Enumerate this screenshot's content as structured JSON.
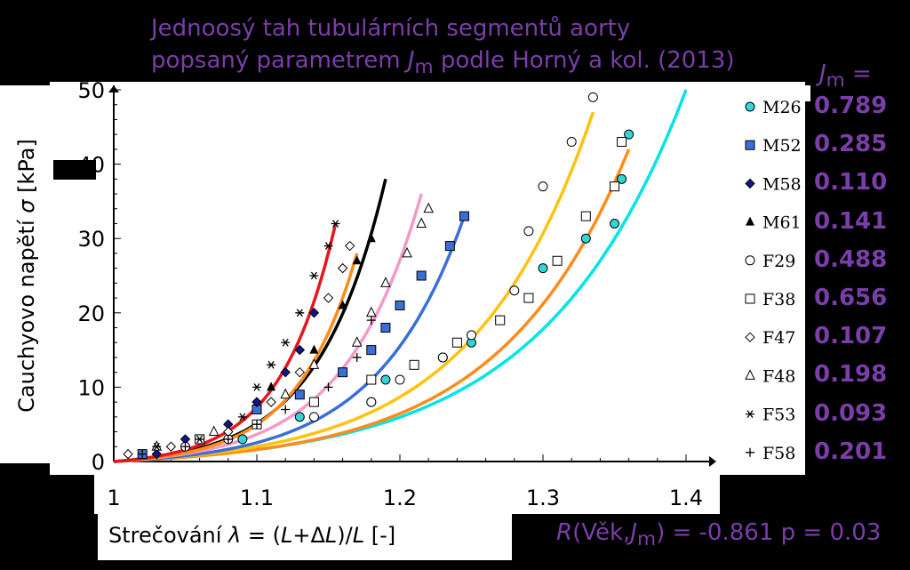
{
  "title_line1": "Jednoosý tah tubulárních segmentů aorty",
  "title_line2_pre": "popsaný parametrem ",
  "title_line2_var": "J",
  "title_line2_sub": "m",
  "title_line2_post": " podle Horný a kol. (2013)",
  "jm_header_var": "J",
  "jm_header_sub": "m",
  "jm_header_eq": " =",
  "stat_R": "R",
  "stat_pre": "(Věk,",
  "stat_var": "J",
  "stat_sub": "m",
  "stat_post": ") = -0.861 p = 0.03",
  "colors": {
    "background": "#000000",
    "accent": "#7a3ea8",
    "cyan": "#00e5e5",
    "blue": "#3a6fd8",
    "orange": "#ff8c1a",
    "yellow": "#ffc20e",
    "pink": "#f29ac8",
    "red": "#e8141e"
  },
  "chart_data": {
    "type": "scatter",
    "xlabel_pre": "Strečování ",
    "xlabel_sym": "λ",
    "xlabel_mid": " = (",
    "xlabel_L1": "L",
    "xlabel_plus": "+Δ",
    "xlabel_L2": "L",
    "xlabel_close": ")/",
    "xlabel_L3": "L",
    "xlabel_unit": " [-]",
    "ylabel_pre": "Cauchyovo napětí ",
    "ylabel_sym": "σ",
    "ylabel_unit": " [kPa]",
    "xlim": [
      1.0,
      1.4
    ],
    "ylim": [
      0,
      50
    ],
    "xticks": [
      "1",
      "1.1",
      "1.2",
      "1.3",
      "1.4"
    ],
    "yticks": [
      "0",
      "10",
      "20",
      "30",
      "40",
      "50"
    ],
    "legend_position": "right",
    "series": [
      {
        "name": "M26",
        "marker": "circle-filled-cyan",
        "jm": "0.789",
        "points": [
          [
            1.09,
            3
          ],
          [
            1.13,
            6
          ],
          [
            1.18,
            8
          ],
          [
            1.19,
            11
          ],
          [
            1.23,
            14
          ],
          [
            1.25,
            16
          ],
          [
            1.27,
            19
          ],
          [
            1.3,
            26
          ],
          [
            1.33,
            30
          ],
          [
            1.35,
            32
          ],
          [
            1.355,
            38
          ],
          [
            1.36,
            44
          ]
        ]
      },
      {
        "name": "M52",
        "marker": "square-filled-blue",
        "jm": "0.285",
        "points": [
          [
            1.02,
            1
          ],
          [
            1.06,
            3
          ],
          [
            1.1,
            7
          ],
          [
            1.13,
            9
          ],
          [
            1.16,
            12
          ],
          [
            1.18,
            15
          ],
          [
            1.19,
            18
          ],
          [
            1.2,
            21
          ],
          [
            1.215,
            25
          ],
          [
            1.235,
            29
          ],
          [
            1.245,
            33
          ]
        ]
      },
      {
        "name": "M58",
        "marker": "diamond-filled-navy",
        "jm": "0.110",
        "points": [
          [
            1.03,
            1
          ],
          [
            1.05,
            3
          ],
          [
            1.08,
            5
          ],
          [
            1.1,
            8
          ],
          [
            1.12,
            12
          ],
          [
            1.13,
            15
          ],
          [
            1.14,
            20
          ]
        ]
      },
      {
        "name": "M61",
        "marker": "triangle-filled-black",
        "jm": "0.141",
        "points": [
          [
            1.11,
            10
          ],
          [
            1.14,
            15
          ],
          [
            1.16,
            21
          ],
          [
            1.17,
            27
          ],
          [
            1.18,
            30
          ]
        ]
      },
      {
        "name": "F29",
        "marker": "circle-open",
        "jm": "0.488",
        "points": [
          [
            1.05,
            2
          ],
          [
            1.08,
            3
          ],
          [
            1.14,
            6
          ],
          [
            1.18,
            8
          ],
          [
            1.2,
            11
          ],
          [
            1.23,
            14
          ],
          [
            1.25,
            17
          ],
          [
            1.28,
            23
          ],
          [
            1.29,
            31
          ],
          [
            1.3,
            37
          ],
          [
            1.32,
            43
          ],
          [
            1.335,
            49
          ]
        ]
      },
      {
        "name": "F38",
        "marker": "square-open",
        "jm": "0.656",
        "points": [
          [
            1.06,
            3
          ],
          [
            1.1,
            5
          ],
          [
            1.14,
            8
          ],
          [
            1.18,
            11
          ],
          [
            1.21,
            13
          ],
          [
            1.24,
            16
          ],
          [
            1.27,
            19
          ],
          [
            1.29,
            22
          ],
          [
            1.31,
            27
          ],
          [
            1.33,
            33
          ],
          [
            1.35,
            37
          ],
          [
            1.355,
            43
          ]
        ]
      },
      {
        "name": "F47",
        "marker": "diamond-open",
        "jm": "0.107",
        "points": [
          [
            1.01,
            1
          ],
          [
            1.04,
            2
          ],
          [
            1.08,
            4
          ],
          [
            1.11,
            8
          ],
          [
            1.13,
            12
          ],
          [
            1.15,
            22
          ],
          [
            1.16,
            26
          ],
          [
            1.165,
            29
          ]
        ]
      },
      {
        "name": "F48",
        "marker": "triangle-open",
        "jm": "0.198",
        "points": [
          [
            1.03,
            2
          ],
          [
            1.07,
            4
          ],
          [
            1.12,
            9
          ],
          [
            1.14,
            13
          ],
          [
            1.17,
            16
          ],
          [
            1.18,
            20
          ],
          [
            1.19,
            24
          ],
          [
            1.205,
            28
          ],
          [
            1.215,
            32
          ],
          [
            1.22,
            34
          ]
        ]
      },
      {
        "name": "F53",
        "marker": "asterisk",
        "jm": "0.093",
        "points": [
          [
            1.03,
            2
          ],
          [
            1.06,
            3
          ],
          [
            1.09,
            6
          ],
          [
            1.1,
            10
          ],
          [
            1.11,
            13
          ],
          [
            1.12,
            16
          ],
          [
            1.13,
            20
          ],
          [
            1.14,
            25
          ],
          [
            1.15,
            29
          ],
          [
            1.155,
            32
          ]
        ]
      },
      {
        "name": "F58",
        "marker": "plus",
        "jm": "0.201",
        "points": [
          [
            1.02,
            1
          ],
          [
            1.05,
            2
          ],
          [
            1.08,
            3
          ],
          [
            1.1,
            5
          ],
          [
            1.12,
            7
          ],
          [
            1.15,
            10
          ],
          [
            1.17,
            14
          ],
          [
            1.18,
            19
          ]
        ]
      }
    ],
    "fit_curves": [
      {
        "color": "#00e5e5",
        "x_end": 1.4,
        "y_end": 50
      },
      {
        "color": "#ff8c1a",
        "x_end": 1.36,
        "y_end": 42
      },
      {
        "color": "#ffc20e",
        "x_end": 1.335,
        "y_end": 47
      },
      {
        "color": "#3a6fd8",
        "x_end": 1.245,
        "y_end": 33
      },
      {
        "color": "#f29ac8",
        "x_end": 1.215,
        "y_end": 36
      },
      {
        "color": "#000000",
        "x_end": 1.19,
        "y_end": 38
      },
      {
        "color": "#ff8c1a",
        "x_end": 1.17,
        "y_end": 28
      },
      {
        "color": "#e8141e",
        "x_end": 1.155,
        "y_end": 32
      }
    ]
  }
}
